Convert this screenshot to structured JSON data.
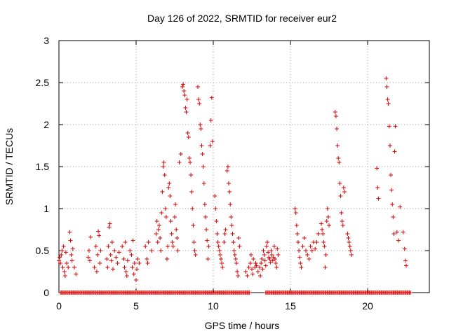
{
  "chart_data": {
    "type": "scatter",
    "title": "Day 126 of 2022, SRMTID for receiver eur2",
    "xlabel": "GPS time / hours",
    "ylabel": "SRMTID / TECUs",
    "xlim": [
      0,
      24
    ],
    "ylim": [
      0,
      3
    ],
    "xticks": [
      0,
      5,
      10,
      15,
      20
    ],
    "yticks": [
      0,
      0.5,
      1,
      1.5,
      2,
      2.5,
      3
    ],
    "xtick_labels": [
      "0",
      "5",
      "10",
      "15",
      "20"
    ],
    "ytick_labels": [
      "0",
      "0.5",
      "1",
      "1.5",
      "2",
      "2.5",
      "3"
    ],
    "grid": true,
    "marker": "plus",
    "color": "#dd0000",
    "series": [
      {
        "name": "SRMTID",
        "points": [
          [
            0.0,
            0.38
          ],
          [
            0.05,
            0.42
          ],
          [
            0.1,
            0.35
          ],
          [
            0.15,
            0.45
          ],
          [
            0.2,
            0.5
          ],
          [
            0.25,
            0.3
          ],
          [
            0.3,
            0.55
          ],
          [
            0.35,
            0.25
          ],
          [
            0.4,
            0.2
          ],
          [
            0.45,
            0.48
          ],
          [
            0.5,
            0.35
          ],
          [
            0.6,
            0.3
          ],
          [
            0.7,
            0.72
          ],
          [
            0.75,
            0.62
          ],
          [
            0.8,
            0.45
          ],
          [
            0.85,
            0.38
          ],
          [
            0.9,
            0.52
          ],
          [
            1.0,
            0.3
          ],
          [
            1.1,
            0.22
          ],
          [
            1.9,
            0.42
          ],
          [
            1.95,
            0.5
          ],
          [
            2.0,
            0.38
          ],
          [
            2.05,
            0.66
          ],
          [
            2.3,
            0.3
          ],
          [
            2.4,
            0.55
          ],
          [
            2.45,
            0.25
          ],
          [
            2.5,
            0.45
          ],
          [
            2.55,
            0.73
          ],
          [
            2.6,
            0.68
          ],
          [
            2.65,
            0.35
          ],
          [
            2.7,
            0.5
          ],
          [
            3.1,
            0.4
          ],
          [
            3.15,
            0.3
          ],
          [
            3.2,
            0.55
          ],
          [
            3.25,
            0.78
          ],
          [
            3.3,
            0.82
          ],
          [
            3.35,
            0.45
          ],
          [
            3.4,
            0.38
          ],
          [
            3.45,
            0.6
          ],
          [
            3.5,
            0.28
          ],
          [
            3.6,
            0.5
          ],
          [
            3.7,
            0.42
          ],
          [
            3.8,
            0.35
          ],
          [
            3.9,
            0.48
          ],
          [
            4.1,
            0.55
          ],
          [
            4.2,
            0.4
          ],
          [
            4.25,
            0.3
          ],
          [
            4.3,
            0.6
          ],
          [
            4.35,
            0.25
          ],
          [
            4.4,
            0.2
          ],
          [
            4.45,
            0.38
          ],
          [
            4.6,
            0.5
          ],
          [
            4.7,
            0.45
          ],
          [
            4.75,
            0.3
          ],
          [
            4.8,
            0.62
          ],
          [
            4.85,
            0.22
          ],
          [
            4.9,
            0.35
          ],
          [
            5.0,
            0.15
          ],
          [
            5.05,
            0.28
          ],
          [
            5.1,
            0.4
          ],
          [
            5.2,
            0.35
          ],
          [
            5.6,
            0.55
          ],
          [
            5.7,
            0.4
          ],
          [
            5.75,
            0.35
          ],
          [
            5.8,
            0.6
          ],
          [
            6.0,
            0.5
          ],
          [
            6.3,
            0.7
          ],
          [
            6.35,
            0.85
          ],
          [
            6.4,
            0.6
          ],
          [
            6.45,
            0.75
          ],
          [
            6.5,
            0.8
          ],
          [
            6.55,
            0.65
          ],
          [
            6.6,
            0.5
          ],
          [
            6.65,
            0.95
          ],
          [
            6.7,
            1.2
          ],
          [
            6.75,
            1.5
          ],
          [
            6.8,
            1.55
          ],
          [
            6.85,
            1.4
          ],
          [
            6.9,
            1.0
          ],
          [
            6.95,
            0.9
          ],
          [
            7.0,
            0.4
          ],
          [
            7.05,
            0.55
          ],
          [
            7.1,
            1.25
          ],
          [
            7.15,
            1.3
          ],
          [
            7.2,
            1.15
          ],
          [
            7.25,
            0.85
          ],
          [
            7.3,
            0.7
          ],
          [
            7.35,
            0.6
          ],
          [
            7.4,
            0.55
          ],
          [
            7.5,
            0.9
          ],
          [
            7.55,
            1.05
          ],
          [
            7.6,
            0.75
          ],
          [
            7.65,
            0.65
          ],
          [
            7.7,
            0.5
          ],
          [
            7.8,
            1.55
          ],
          [
            7.9,
            1.65
          ],
          [
            8.0,
            2.45
          ],
          [
            8.05,
            2.48
          ],
          [
            8.1,
            2.4
          ],
          [
            8.15,
            2.35
          ],
          [
            8.2,
            2.2
          ],
          [
            8.25,
            2.15
          ],
          [
            8.3,
            2.3
          ],
          [
            8.35,
            1.9
          ],
          [
            8.4,
            1.85
          ],
          [
            8.45,
            1.6
          ],
          [
            8.5,
            1.55
          ],
          [
            8.55,
            1.4
          ],
          [
            8.6,
            1.2
          ],
          [
            8.65,
            1.0
          ],
          [
            8.7,
            0.8
          ],
          [
            8.75,
            0.6
          ],
          [
            8.8,
            0.5
          ],
          [
            8.85,
            0.45
          ],
          [
            9.0,
            2.45
          ],
          [
            9.05,
            2.3
          ],
          [
            9.1,
            2.25
          ],
          [
            9.15,
            2.0
          ],
          [
            9.2,
            1.95
          ],
          [
            9.25,
            1.75
          ],
          [
            9.3,
            1.65
          ],
          [
            9.35,
            1.5
          ],
          [
            9.4,
            1.3
          ],
          [
            9.45,
            1.05
          ],
          [
            9.5,
            0.9
          ],
          [
            9.55,
            0.75
          ],
          [
            9.6,
            0.62
          ],
          [
            9.65,
            0.4
          ],
          [
            9.7,
            0.55
          ],
          [
            9.8,
            1.75
          ],
          [
            9.85,
            2.05
          ],
          [
            9.9,
            2.32
          ],
          [
            9.95,
            1.8
          ],
          [
            10.1,
            1.15
          ],
          [
            10.15,
            1.0
          ],
          [
            10.2,
            0.85
          ],
          [
            10.25,
            0.7
          ],
          [
            10.3,
            0.6
          ],
          [
            10.35,
            0.55
          ],
          [
            10.4,
            0.5
          ],
          [
            10.45,
            0.45
          ],
          [
            10.5,
            0.4
          ],
          [
            10.55,
            0.35
          ],
          [
            10.6,
            0.3
          ],
          [
            10.7,
            0.6
          ],
          [
            10.75,
            0.7
          ],
          [
            10.8,
            0.75
          ],
          [
            10.9,
            1.45
          ],
          [
            10.95,
            1.5
          ],
          [
            11.0,
            1.3
          ],
          [
            11.05,
            1.2
          ],
          [
            11.1,
            1.05
          ],
          [
            11.15,
            0.9
          ],
          [
            11.2,
            0.8
          ],
          [
            11.25,
            0.7
          ],
          [
            11.3,
            0.6
          ],
          [
            11.35,
            0.5
          ],
          [
            11.4,
            0.45
          ],
          [
            11.45,
            0.4
          ],
          [
            11.5,
            0.35
          ],
          [
            11.55,
            0.25
          ],
          [
            11.6,
            0.2
          ],
          [
            11.65,
            0.65
          ],
          [
            11.7,
            0.55
          ],
          [
            12.1,
            0.25
          ],
          [
            12.2,
            0.2
          ],
          [
            12.3,
            0.3
          ],
          [
            12.4,
            0.35
          ],
          [
            12.45,
            0.45
          ],
          [
            12.5,
            0.28
          ],
          [
            12.55,
            0.22
          ],
          [
            12.6,
            0.4
          ],
          [
            12.7,
            0.3
          ],
          [
            12.75,
            0.35
          ],
          [
            12.8,
            0.32
          ],
          [
            12.9,
            0.25
          ],
          [
            13.0,
            0.3
          ],
          [
            13.05,
            0.2
          ],
          [
            13.1,
            0.35
          ],
          [
            13.15,
            0.4
          ],
          [
            13.2,
            0.28
          ],
          [
            13.25,
            0.5
          ],
          [
            13.3,
            0.45
          ],
          [
            13.35,
            0.38
          ],
          [
            13.4,
            0.32
          ],
          [
            13.45,
            0.55
          ],
          [
            13.5,
            0.6
          ],
          [
            13.55,
            0.48
          ],
          [
            13.6,
            0.42
          ],
          [
            13.65,
            0.4
          ],
          [
            13.7,
            0.36
          ],
          [
            13.75,
            0.5
          ],
          [
            13.8,
            0.45
          ],
          [
            13.85,
            0.38
          ],
          [
            13.9,
            0.42
          ],
          [
            13.95,
            0.55
          ],
          [
            14.0,
            0.4
          ],
          [
            14.05,
            0.35
          ],
          [
            14.1,
            0.3
          ],
          [
            14.15,
            0.52
          ],
          [
            14.2,
            0.45
          ],
          [
            15.3,
            1.0
          ],
          [
            15.35,
            0.95
          ],
          [
            15.4,
            0.8
          ],
          [
            15.45,
            0.7
          ],
          [
            15.5,
            0.6
          ],
          [
            15.55,
            0.5
          ],
          [
            15.6,
            0.42
          ],
          [
            15.65,
            0.35
          ],
          [
            15.7,
            0.3
          ],
          [
            15.8,
            0.55
          ],
          [
            15.9,
            0.65
          ],
          [
            16.0,
            0.5
          ],
          [
            16.1,
            0.45
          ],
          [
            16.2,
            0.4
          ],
          [
            16.3,
            0.55
          ],
          [
            16.4,
            0.5
          ],
          [
            16.5,
            0.6
          ],
          [
            16.6,
            0.52
          ],
          [
            16.7,
            0.6
          ],
          [
            16.8,
            0.7
          ],
          [
            17.0,
            0.82
          ],
          [
            17.05,
            0.75
          ],
          [
            17.1,
            0.7
          ],
          [
            17.15,
            0.6
          ],
          [
            17.2,
            0.55
          ],
          [
            17.25,
            0.3
          ],
          [
            17.3,
            0.45
          ],
          [
            17.35,
            0.85
          ],
          [
            17.4,
            1.0
          ],
          [
            17.45,
            0.9
          ],
          [
            17.5,
            0.8
          ],
          [
            17.9,
            2.15
          ],
          [
            17.95,
            2.1
          ],
          [
            18.0,
            1.95
          ],
          [
            18.05,
            1.75
          ],
          [
            18.1,
            1.6
          ],
          [
            18.15,
            1.55
          ],
          [
            18.2,
            1.3
          ],
          [
            18.25,
            1.15
          ],
          [
            18.3,
            0.95
          ],
          [
            18.35,
            0.85
          ],
          [
            18.4,
            0.8
          ],
          [
            18.45,
            1.25
          ],
          [
            18.5,
            1.2
          ],
          [
            18.7,
            0.7
          ],
          [
            18.75,
            0.65
          ],
          [
            18.8,
            0.6
          ],
          [
            18.85,
            0.55
          ],
          [
            18.9,
            0.5
          ],
          [
            18.95,
            0.45
          ],
          [
            20.6,
            1.48
          ],
          [
            20.65,
            1.25
          ],
          [
            20.7,
            1.12
          ],
          [
            21.2,
            2.55
          ],
          [
            21.25,
            2.45
          ],
          [
            21.3,
            2.3
          ],
          [
            21.35,
            2.25
          ],
          [
            21.4,
            1.98
          ],
          [
            21.45,
            1.75
          ],
          [
            21.5,
            1.4
          ],
          [
            21.55,
            1.22
          ],
          [
            21.6,
            1.05
          ],
          [
            21.65,
            0.9
          ],
          [
            21.7,
            0.7
          ],
          [
            21.75,
            1.68
          ],
          [
            21.8,
            1.98
          ],
          [
            21.9,
            0.72
          ],
          [
            22.0,
            0.62
          ],
          [
            22.1,
            1.02
          ],
          [
            22.3,
            0.72
          ],
          [
            22.4,
            0.52
          ],
          [
            22.45,
            0.38
          ],
          [
            22.5,
            0.32
          ]
        ]
      }
    ],
    "zero_runs": [
      [
        0.1,
        12.4
      ],
      [
        13.4,
        22.8
      ]
    ]
  }
}
